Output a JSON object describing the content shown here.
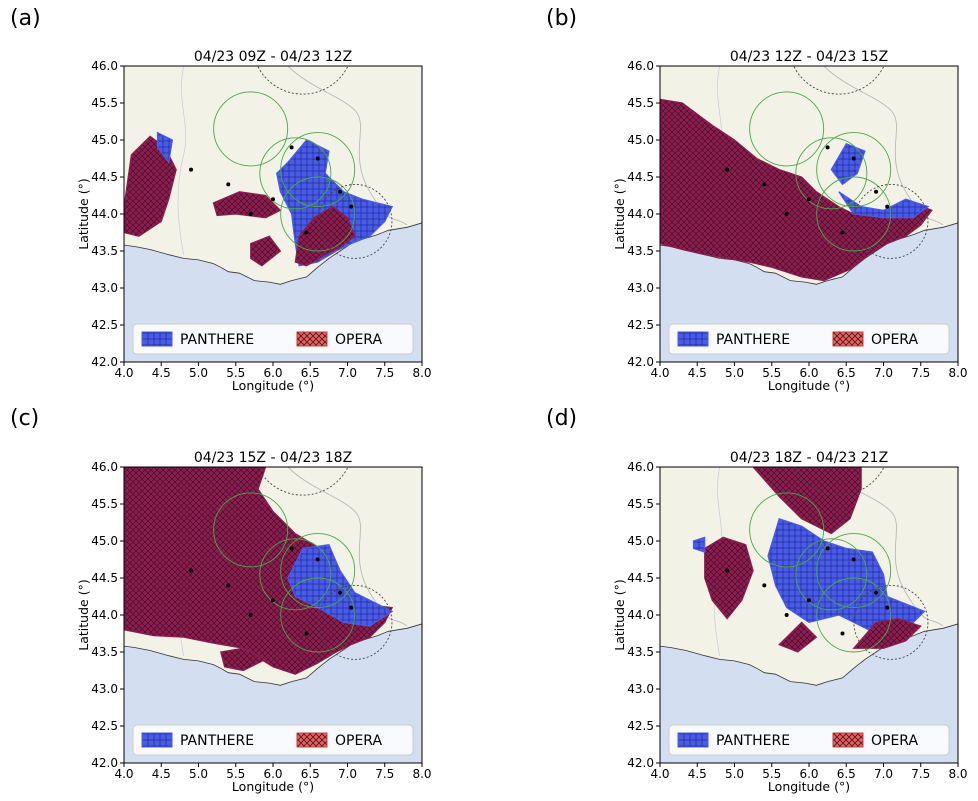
{
  "legend": {
    "panthere": "PANTHERE",
    "opera": "OPERA"
  },
  "axes": {
    "xlabel": "Longitude (°)",
    "ylabel": "Latitude (°)",
    "xlim": [
      4.0,
      8.0
    ],
    "ylim": [
      42.0,
      46.0
    ],
    "xticks": [
      "4.0",
      "4.5",
      "5.0",
      "5.5",
      "6.0",
      "6.5",
      "7.0",
      "7.5",
      "8.0"
    ],
    "yticks": [
      "42.0",
      "42.5",
      "43.0",
      "43.5",
      "44.0",
      "44.5",
      "45.0",
      "45.5",
      "46.0"
    ]
  },
  "colors": {
    "land": "#f3f2e6",
    "sea": "#d3def0",
    "panthere": "#4a5ce6",
    "opera": "#8c1d4f",
    "opera_legend": "#e06464",
    "circle_radar": "#4aa84a",
    "circle_dotted": "#444444"
  },
  "panels": [
    {
      "letter": "(a)",
      "title": "04/23 09Z - 04/23 12Z"
    },
    {
      "letter": "(b)",
      "title": "04/23 12Z - 04/23 15Z"
    },
    {
      "letter": "(c)",
      "title": "04/23 15Z - 04/23 18Z"
    },
    {
      "letter": "(d)",
      "title": "04/23 18Z - 04/23 21Z"
    }
  ]
}
